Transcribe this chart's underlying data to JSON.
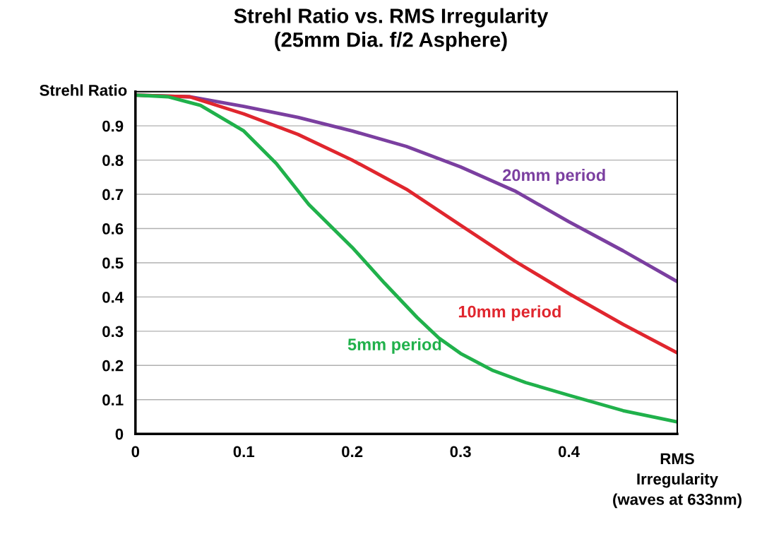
{
  "chart_data": {
    "type": "line",
    "title": "Strehl Ratio vs. RMS Irregularity\n(25mm Dia. f/2 Asphere)",
    "ylabel": "Strehl Ratio",
    "xlabel": "RMS\nIrregularity\n(waves at 633nm)",
    "xlim": [
      0,
      0.5
    ],
    "xticks": [
      0,
      0.1,
      0.2,
      0.3,
      0.4
    ],
    "ylim": [
      0,
      1
    ],
    "yticks": [
      0,
      0.1,
      0.2,
      0.3,
      0.4,
      0.5,
      0.6,
      0.7,
      0.8,
      0.9
    ],
    "grid": "y",
    "legend": false,
    "marker": "none",
    "line_style": "solid",
    "series": [
      {
        "name": "20mm period",
        "color": "#7b3fa0",
        "x": [
          0,
          0.05,
          0.1,
          0.15,
          0.2,
          0.25,
          0.3,
          0.35,
          0.4,
          0.45,
          0.5
        ],
        "values": [
          0.99,
          0.985,
          0.957,
          0.925,
          0.885,
          0.84,
          0.78,
          0.71,
          0.62,
          0.535,
          0.445
        ]
      },
      {
        "name": "10mm period",
        "color": "#e0262e",
        "x": [
          0,
          0.05,
          0.1,
          0.15,
          0.2,
          0.25,
          0.3,
          0.35,
          0.4,
          0.45,
          0.5
        ],
        "values": [
          0.99,
          0.985,
          0.935,
          0.875,
          0.8,
          0.715,
          0.61,
          0.505,
          0.41,
          0.32,
          0.237
        ]
      },
      {
        "name": "5mm period",
        "color": "#20b14b",
        "x": [
          0,
          0.03,
          0.06,
          0.1,
          0.13,
          0.16,
          0.2,
          0.23,
          0.26,
          0.28,
          0.3,
          0.33,
          0.36,
          0.4,
          0.45,
          0.5
        ],
        "values": [
          0.99,
          0.985,
          0.96,
          0.885,
          0.79,
          0.67,
          0.545,
          0.44,
          0.34,
          0.28,
          0.235,
          0.185,
          0.15,
          0.113,
          0.068,
          0.035
        ]
      }
    ]
  }
}
